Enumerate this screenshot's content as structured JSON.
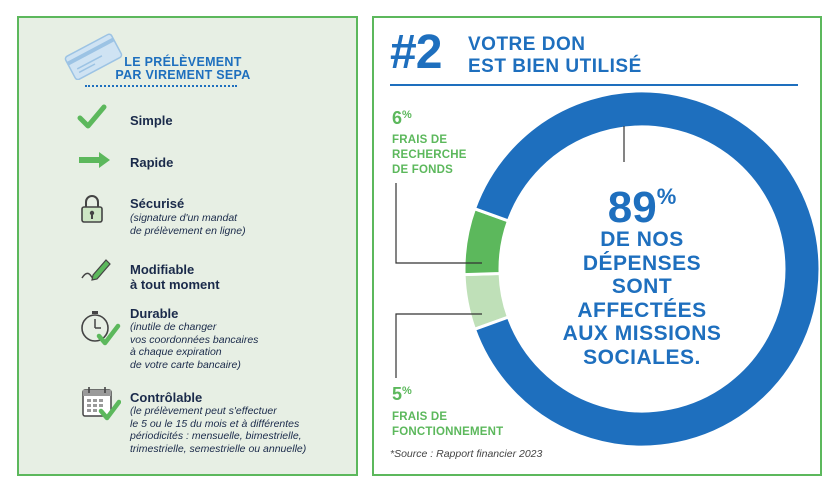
{
  "colors": {
    "blue": "#1e6fbe",
    "green": "#5cb85c",
    "light_green": "#bfe0b8",
    "panel_bg": "#e7efe4"
  },
  "left": {
    "title_line1": "LE PRÉLÈVEMENT",
    "title_line2": "PAR VIREMENT SEPA",
    "features": [
      {
        "icon": "checkmark-icon",
        "title": "Simple"
      },
      {
        "icon": "arrow-right-icon",
        "title": "Rapide"
      },
      {
        "icon": "padlock-icon",
        "title": "Sécurisé",
        "desc": [
          "(signature d'un mandat",
          "de prélèvement en ligne)"
        ]
      },
      {
        "icon": "pen-signature-icon",
        "title": "Modifiable",
        "title2": "à tout moment"
      },
      {
        "icon": "stopwatch-check-icon",
        "title": "Durable",
        "desc": [
          "(inutile de changer",
          "vos coordonnées bancaires",
          "à chaque expiration",
          "de votre carte bancaire)"
        ]
      },
      {
        "icon": "calendar-check-icon",
        "title": "Contrôlable",
        "desc": [
          "(le prélèvement peut s'effectuer",
          " le 5 ou le 15 du mois et à différentes",
          "périodicités : mensuelle, bimestrielle,",
          "trimestrielle, semestrielle ou annuelle)"
        ]
      }
    ]
  },
  "right": {
    "number": "#2",
    "headline_line1": "VOTRE DON",
    "headline_line2": "EST BIEN UTILISÉ",
    "source": "*Source : Rapport financier 2023"
  },
  "chart_data": {
    "type": "pie",
    "style": "donut",
    "title": "VOTRE DON EST BIEN UTILISÉ",
    "slices": [
      {
        "label": "DE NOS DÉPENSES SONT AFFECTÉES AUX MISSIONS SOCIALES.",
        "value": 89,
        "display": "89",
        "color": "#1e6fbe"
      },
      {
        "label_lines": [
          "FRAIS DE",
          "RECHERCHE",
          "DE FONDS"
        ],
        "value": 6,
        "display": "6",
        "color": "#5cb85c"
      },
      {
        "label_lines": [
          "FRAIS DE",
          "FONCTIONNEMENT"
        ],
        "value": 5,
        "display": "5",
        "color": "#bfe0b8"
      }
    ],
    "center_lines": [
      "DE NOS",
      "DÉPENSES",
      "SONT",
      "AFFECTÉES",
      "AUX MISSIONS",
      "SOCIALES."
    ],
    "unit": "%",
    "source": "*Source : Rapport financier 2023"
  }
}
